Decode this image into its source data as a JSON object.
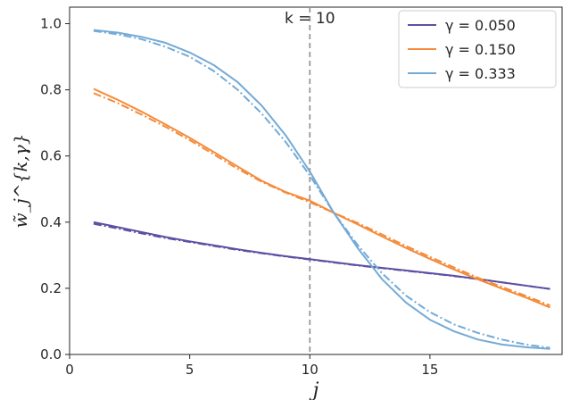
{
  "chart_data": {
    "type": "line",
    "title": "",
    "xlabel": "j",
    "ylabel": "w̃_j^{k,γ}",
    "xlim": [
      0,
      20.5
    ],
    "ylim": [
      0.0,
      1.05
    ],
    "xticks": [
      0,
      5,
      10,
      15
    ],
    "yticks": [
      0.0,
      0.2,
      0.4,
      0.6,
      0.8,
      1.0
    ],
    "grid": false,
    "legend_position": "top-right",
    "annotations": [
      {
        "text": "k = 10",
        "x": 10,
        "kind": "vertical-dashed-line",
        "color": "#999999"
      }
    ],
    "x": [
      1,
      2,
      3,
      4,
      5,
      6,
      7,
      8,
      9,
      10,
      11,
      12,
      13,
      14,
      15,
      16,
      17,
      18,
      19,
      20
    ],
    "series": [
      {
        "name": "γ = 0.050",
        "color": "#5e4fa2",
        "style": "solid",
        "values": [
          0.4,
          0.385,
          0.37,
          0.355,
          0.342,
          0.33,
          0.318,
          0.307,
          0.297,
          0.288,
          0.279,
          0.27,
          0.262,
          0.254,
          0.246,
          0.238,
          0.228,
          0.218,
          0.208,
          0.198
        ]
      },
      {
        "name": "γ = 0.050",
        "color": "#5e4fa2",
        "style": "dashdot",
        "values": [
          0.395,
          0.381,
          0.366,
          0.352,
          0.34,
          0.328,
          0.316,
          0.306,
          0.296,
          0.287,
          0.278,
          0.269,
          0.261,
          0.253,
          0.245,
          0.237,
          0.228,
          0.218,
          0.208,
          0.198
        ]
      },
      {
        "name": "γ = 0.150",
        "color": "#f58b3a",
        "style": "solid",
        "values": [
          0.803,
          0.77,
          0.734,
          0.695,
          0.655,
          0.612,
          0.568,
          0.525,
          0.491,
          0.465,
          0.428,
          0.393,
          0.357,
          0.322,
          0.289,
          0.257,
          0.227,
          0.199,
          0.172,
          0.142
        ]
      },
      {
        "name": "γ = 0.150",
        "color": "#f58b3a",
        "style": "dashdot",
        "values": [
          0.79,
          0.76,
          0.725,
          0.688,
          0.648,
          0.605,
          0.561,
          0.522,
          0.489,
          0.46,
          0.428,
          0.397,
          0.363,
          0.328,
          0.295,
          0.263,
          0.232,
          0.204,
          0.177,
          0.148
        ]
      },
      {
        "name": "γ = 0.333",
        "color": "#74aad6",
        "style": "solid",
        "values": [
          0.981,
          0.973,
          0.96,
          0.942,
          0.913,
          0.875,
          0.823,
          0.752,
          0.662,
          0.553,
          0.428,
          0.321,
          0.228,
          0.157,
          0.105,
          0.07,
          0.045,
          0.03,
          0.022,
          0.017
        ]
      },
      {
        "name": "γ = 0.333",
        "color": "#74aad6",
        "style": "dashdot",
        "values": [
          0.978,
          0.968,
          0.953,
          0.93,
          0.9,
          0.857,
          0.8,
          0.728,
          0.642,
          0.541,
          0.428,
          0.33,
          0.246,
          0.178,
          0.128,
          0.091,
          0.065,
          0.045,
          0.03,
          0.02
        ]
      }
    ],
    "legend": [
      {
        "label": "γ = 0.050",
        "color": "#5e4fa2"
      },
      {
        "label": "γ = 0.150",
        "color": "#f58b3a"
      },
      {
        "label": "γ = 0.333",
        "color": "#74aad6"
      }
    ]
  }
}
